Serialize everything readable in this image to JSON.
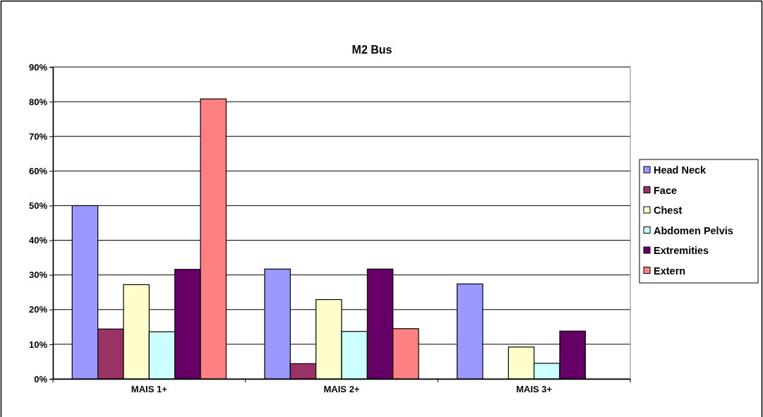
{
  "chart_data": {
    "type": "bar",
    "title": "M2 Bus",
    "categories": [
      "MAIS 1+",
      "MAIS 2+",
      "MAIS 3+"
    ],
    "series": [
      {
        "name": "Head Neck",
        "color": "#9999ff",
        "values": [
          50,
          31.7,
          27.4
        ]
      },
      {
        "name": "Face",
        "color": "#993366",
        "values": [
          14.4,
          4.4,
          0
        ]
      },
      {
        "name": "Chest",
        "color": "#ffffcc",
        "values": [
          27.2,
          22.9,
          9.2
        ]
      },
      {
        "name": "Abdomen Pelvis",
        "color": "#ccffff",
        "values": [
          13.6,
          13.7,
          4.5
        ]
      },
      {
        "name": "Extremities",
        "color": "#660066",
        "values": [
          31.6,
          31.7,
          13.8
        ]
      },
      {
        "name": "Extern",
        "color": "#ff8080",
        "values": [
          80.8,
          14.5,
          0
        ]
      }
    ],
    "ylim": [
      0,
      90
    ],
    "yticks": [
      {
        "value": 0,
        "label": "0%"
      },
      {
        "value": 10,
        "label": "10%"
      },
      {
        "value": 20,
        "label": "20%"
      },
      {
        "value": 30,
        "label": "30%"
      },
      {
        "value": 40,
        "label": "40%"
      },
      {
        "value": 50,
        "label": "50%"
      },
      {
        "value": 60,
        "label": "60%"
      },
      {
        "value": 70,
        "label": "70%"
      },
      {
        "value": 80,
        "label": "80%"
      },
      {
        "value": 90,
        "label": "90%"
      }
    ],
    "grid": "y",
    "legend": "right"
  }
}
